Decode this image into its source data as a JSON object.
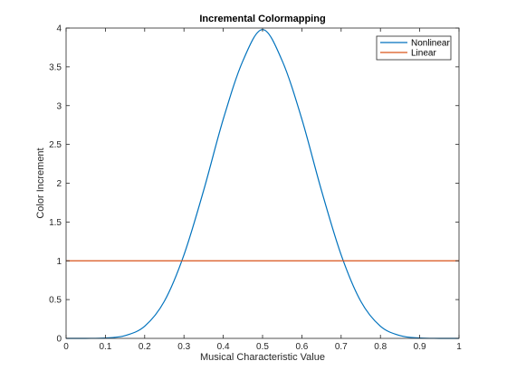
{
  "chart_data": {
    "type": "line",
    "title": "Incremental Colormapping",
    "xlabel": "Musical Characteristic Value",
    "ylabel": "Color Increment",
    "xlim": [
      0,
      1
    ],
    "ylim": [
      0,
      4
    ],
    "x_ticks": [
      0,
      0.1,
      0.2,
      0.3,
      0.4,
      0.5,
      0.6,
      0.7,
      0.8,
      0.9,
      1
    ],
    "x_tick_labels": [
      "0",
      "0.1",
      "0.2",
      "0.3",
      "0.4",
      "0.5",
      "0.6",
      "0.7",
      "0.8",
      "0.9",
      "1"
    ],
    "y_ticks": [
      0,
      0.5,
      1,
      1.5,
      2,
      2.5,
      3,
      3.5,
      4
    ],
    "y_tick_labels": [
      "0",
      "0.5",
      "1",
      "1.5",
      "2",
      "2.5",
      "3",
      "3.5",
      "4"
    ],
    "grid": false,
    "legend_position": "top-right",
    "series": [
      {
        "name": "Nonlinear",
        "color": "#0072bd",
        "x": [
          0,
          0.05,
          0.1,
          0.15,
          0.2,
          0.25,
          0.3,
          0.35,
          0.4,
          0.45,
          0.5,
          0.55,
          0.6,
          0.65,
          0.7,
          0.75,
          0.8,
          0.85,
          0.9,
          0.95,
          1
        ],
        "y": [
          0,
          0.0004,
          0.0053,
          0.0359,
          0.157,
          0.478,
          1.077,
          1.906,
          2.826,
          3.578,
          3.98,
          3.578,
          2.826,
          1.906,
          1.077,
          0.478,
          0.157,
          0.0359,
          0.0053,
          0.0004,
          0
        ]
      },
      {
        "name": "Linear",
        "color": "#d95319",
        "x": [
          0,
          1
        ],
        "y": [
          1,
          1
        ]
      }
    ]
  }
}
